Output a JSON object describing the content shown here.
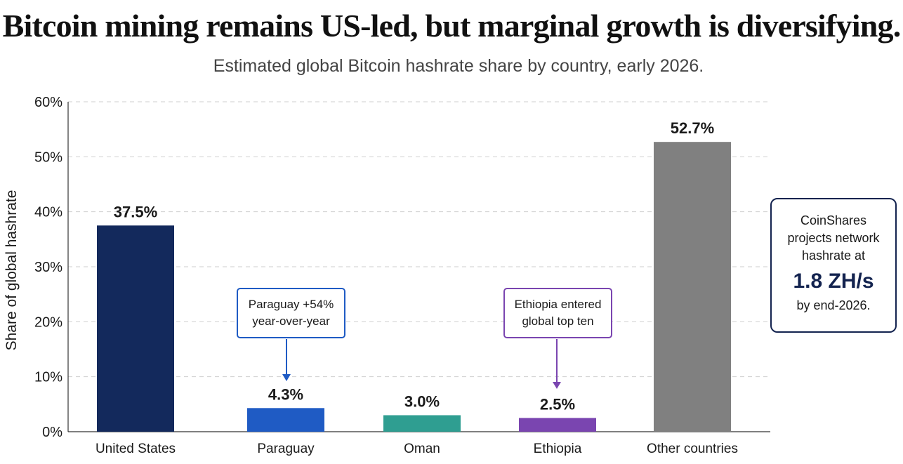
{
  "header": {
    "title": "Bitcoin mining remains US-led, but marginal growth is diversifying.",
    "subtitle": "Estimated global Bitcoin hashrate share by country, early 2026."
  },
  "chart_data": {
    "type": "bar",
    "title": "Bitcoin mining remains US-led, but marginal growth is diversifying.",
    "subtitle": "Estimated global Bitcoin hashrate share by country, early 2026.",
    "xlabel": "",
    "ylabel": "Share of global hashrate",
    "ylim": [
      0,
      60
    ],
    "yticks": [
      0,
      10,
      20,
      30,
      40,
      50,
      60
    ],
    "ytick_labels": [
      "0%",
      "10%",
      "20%",
      "30%",
      "40%",
      "50%",
      "60%"
    ],
    "grid": "horizontal dashed",
    "categories": [
      "United States",
      "Paraguay",
      "Oman",
      "Ethiopia",
      "Other countries"
    ],
    "values": [
      37.5,
      4.3,
      3.0,
      2.5,
      52.7
    ],
    "value_labels": [
      "37.5%",
      "4.3%",
      "3.0%",
      "2.5%",
      "52.7%"
    ],
    "colors": [
      "#13295c",
      "#1f5bc4",
      "#2f9e91",
      "#7a45b0",
      "#808080"
    ],
    "annotations": [
      {
        "target": "Paraguay",
        "lines": [
          "Paraguay +54%",
          "year-over-year"
        ],
        "color": "#1f5bc4"
      },
      {
        "target": "Ethiopia",
        "lines": [
          "Ethiopia entered",
          "global top ten"
        ],
        "color": "#7a45b0"
      }
    ]
  },
  "side_note": {
    "line1": "CoinShares",
    "line2": "projects network",
    "line3": "hashrate at",
    "highlight": "1.8 ZH/s",
    "line4": "by end-2026."
  }
}
